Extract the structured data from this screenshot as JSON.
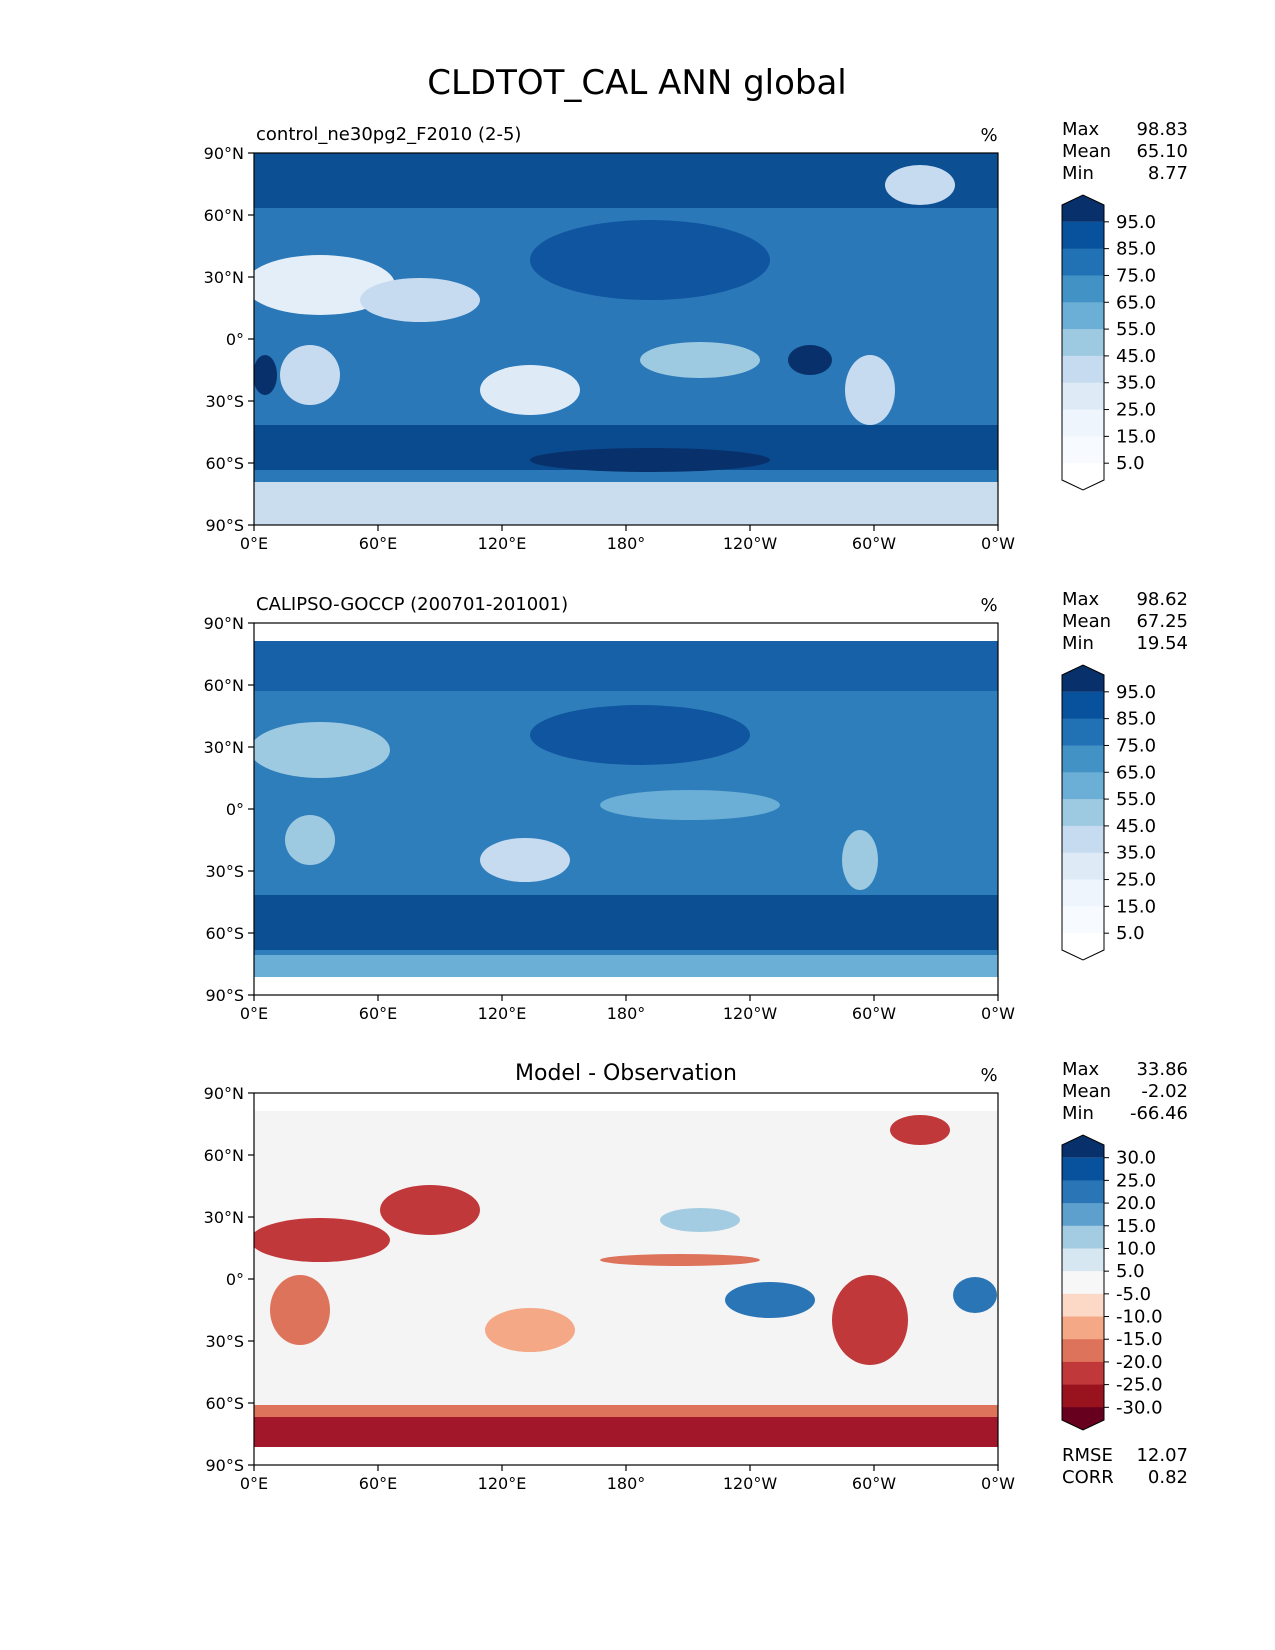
{
  "title": "CLDTOT_CAL ANN global",
  "axes": {
    "lat_ticks": [
      "90°N",
      "60°N",
      "30°N",
      "0°",
      "30°S",
      "60°S",
      "90°S"
    ],
    "lon_ticks": [
      "0°E",
      "60°E",
      "120°E",
      "180°",
      "120°W",
      "60°W",
      "0°W"
    ]
  },
  "panels": [
    {
      "id": "model",
      "title": "control_ne30pg2_F2010 (2-5)",
      "title_position": "left",
      "units": "%",
      "stats": [
        {
          "label": "Max",
          "value": "98.83"
        },
        {
          "label": "Mean",
          "value": "65.10"
        },
        {
          "label": "Min",
          "value": "8.77"
        }
      ],
      "colorbar": {
        "labels": [
          "95.0",
          "85.0",
          "75.0",
          "65.0",
          "55.0",
          "45.0",
          "35.0",
          "25.0",
          "15.0",
          "5.0"
        ],
        "colors": [
          "#08306b",
          "#08519c",
          "#2171b5",
          "#4292c6",
          "#6baed6",
          "#9ecae1",
          "#c6dbef",
          "#deebf7",
          "#eef5fc",
          "#f7fbff",
          "#ffffff"
        ]
      }
    },
    {
      "id": "obs",
      "title": "CALIPSO-GOCCP (200701-201001)",
      "title_position": "left",
      "units": "%",
      "stats": [
        {
          "label": "Max",
          "value": "98.62"
        },
        {
          "label": "Mean",
          "value": "67.25"
        },
        {
          "label": "Min",
          "value": "19.54"
        }
      ],
      "colorbar": {
        "labels": [
          "95.0",
          "85.0",
          "75.0",
          "65.0",
          "55.0",
          "45.0",
          "35.0",
          "25.0",
          "15.0",
          "5.0"
        ],
        "colors": [
          "#08306b",
          "#08519c",
          "#2171b5",
          "#4292c6",
          "#6baed6",
          "#9ecae1",
          "#c6dbef",
          "#deebf7",
          "#eef5fc",
          "#f7fbff",
          "#ffffff"
        ]
      }
    },
    {
      "id": "diff",
      "title": "Model - Observation",
      "title_position": "center",
      "units": "%",
      "stats": [
        {
          "label": "Max",
          "value": "33.86"
        },
        {
          "label": "Mean",
          "value": "-2.02"
        },
        {
          "label": "Min",
          "value": "-66.46"
        }
      ],
      "colorbar": {
        "labels": [
          "30.0",
          "25.0",
          "20.0",
          "15.0",
          "10.0",
          "5.0",
          "-5.0",
          "-10.0",
          "-15.0",
          "-20.0",
          "-25.0",
          "-30.0"
        ],
        "colors": [
          "#08306b",
          "#08519c",
          "#2a75b5",
          "#5d9fcd",
          "#a3cbe2",
          "#d6e7f1",
          "#f7f7f7",
          "#fbd9c6",
          "#f4a886",
          "#de735c",
          "#c0383a",
          "#99131f",
          "#67001f"
        ]
      },
      "footer_stats": [
        {
          "label": "RMSE",
          "value": "12.07"
        },
        {
          "label": "CORR",
          "value": "0.82"
        }
      ]
    }
  ],
  "chart_data": {
    "type": "heatmap",
    "title": "CLDTOT_CAL ANN global",
    "x_range": [
      0,
      360
    ],
    "y_range": [
      -90,
      90
    ],
    "units": "%"
  }
}
